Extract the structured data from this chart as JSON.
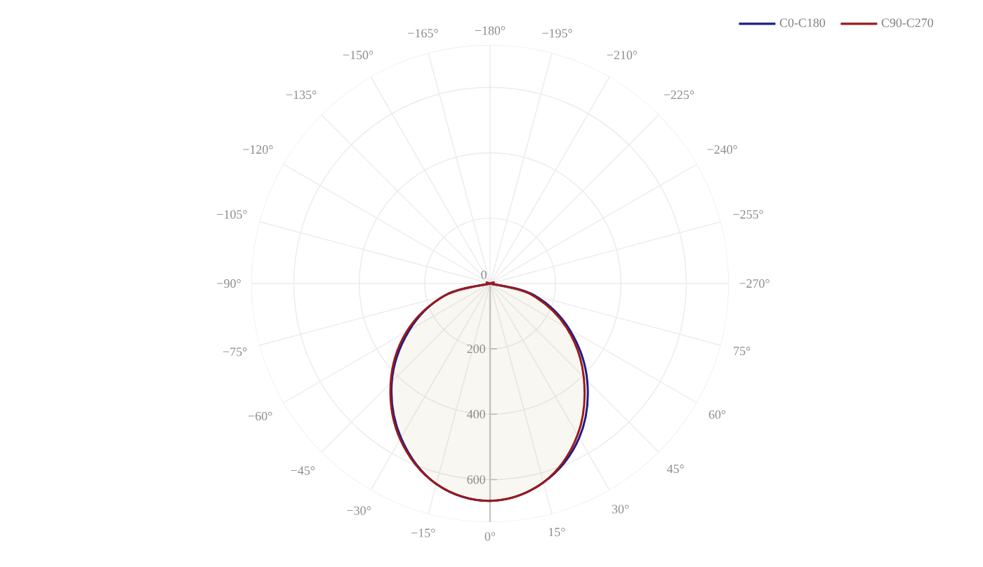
{
  "chart_data": {
    "type": "radar",
    "categories": [
      "−180°",
      "−195°",
      "−210°",
      "−225°",
      "−240°",
      "−255°",
      "−270°",
      "75°",
      "60°",
      "45°",
      "30°",
      "15°",
      "0°",
      "−15°",
      "−30°",
      "−45°",
      "−60°",
      "−75°",
      "−90°",
      "−105°",
      "−120°",
      "−135°",
      "−150°",
      "−165°"
    ],
    "series": [
      {
        "name": "C0-C180",
        "type": "area",
        "color": "#1c1c8c",
        "values": [
          0,
          0,
          0,
          0,
          0,
          0,
          0,
          140,
          280,
          420,
          545,
          630,
          665,
          635,
          545,
          425,
          285,
          145,
          0,
          0,
          0,
          0,
          0,
          0
        ]
      },
      {
        "name": "C90-C270",
        "type": "area",
        "color": "#9c1a1a",
        "values": [
          0,
          0,
          0,
          0,
          0,
          0,
          0,
          130,
          270,
          405,
          535,
          630,
          665,
          635,
          550,
          430,
          295,
          145,
          0,
          0,
          0,
          0,
          0,
          0
        ]
      }
    ],
    "ylim": [
      0,
      730
    ],
    "yticks": [
      0,
      200,
      400,
      600
    ],
    "grid": true,
    "legend": "top right"
  }
}
